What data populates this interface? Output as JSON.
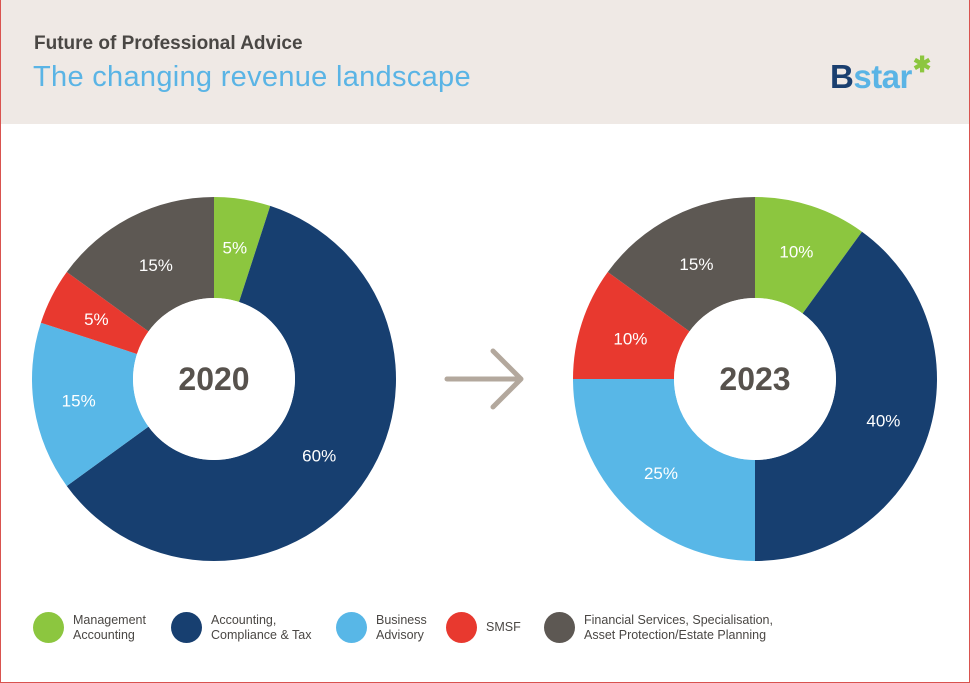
{
  "header": {
    "kicker": "Future of Professional Advice",
    "title": "The changing revenue landscape",
    "logo_text": "Bstar"
  },
  "colors": {
    "management": "#8cc63f",
    "accounting": "#173f70",
    "business": "#58b7e7",
    "smsf": "#e8392f",
    "financial": "#5d5853",
    "center_label": "#57524d",
    "arrow": "#b3a89d"
  },
  "chart_data": [
    {
      "type": "pie",
      "subtype": "donut",
      "center_label": "2020",
      "categories": [
        "Management Accounting",
        "Accounting, Compliance & Tax",
        "Business Advisory",
        "SMSF",
        "Financial Services, Specialisation, Asset Protection/Estate Planning"
      ],
      "values": [
        5,
        60,
        15,
        5,
        15
      ],
      "labels": [
        "5%",
        "60%",
        "15%",
        "5%",
        "15%"
      ],
      "title": ""
    },
    {
      "type": "pie",
      "subtype": "donut",
      "center_label": "2023",
      "categories": [
        "Management Accounting",
        "Accounting, Compliance & Tax",
        "Business Advisory",
        "SMSF",
        "Financial Services, Specialisation, Asset Protection/Estate Planning"
      ],
      "values": [
        10,
        40,
        25,
        10,
        15
      ],
      "labels": [
        "10%",
        "40%",
        "25%",
        "10%",
        "15%"
      ],
      "title": ""
    }
  ],
  "legend": [
    {
      "key": "management",
      "label": "Management\nAccounting"
    },
    {
      "key": "accounting",
      "label": "Accounting,\nCompliance & Tax"
    },
    {
      "key": "business",
      "label": "Business\nAdvisory"
    },
    {
      "key": "smsf",
      "label": "SMSF"
    },
    {
      "key": "financial",
      "label": "Financial Services, Specialisation,\nAsset Protection/Estate Planning"
    }
  ],
  "arrow_icon": "arrow-right-icon"
}
